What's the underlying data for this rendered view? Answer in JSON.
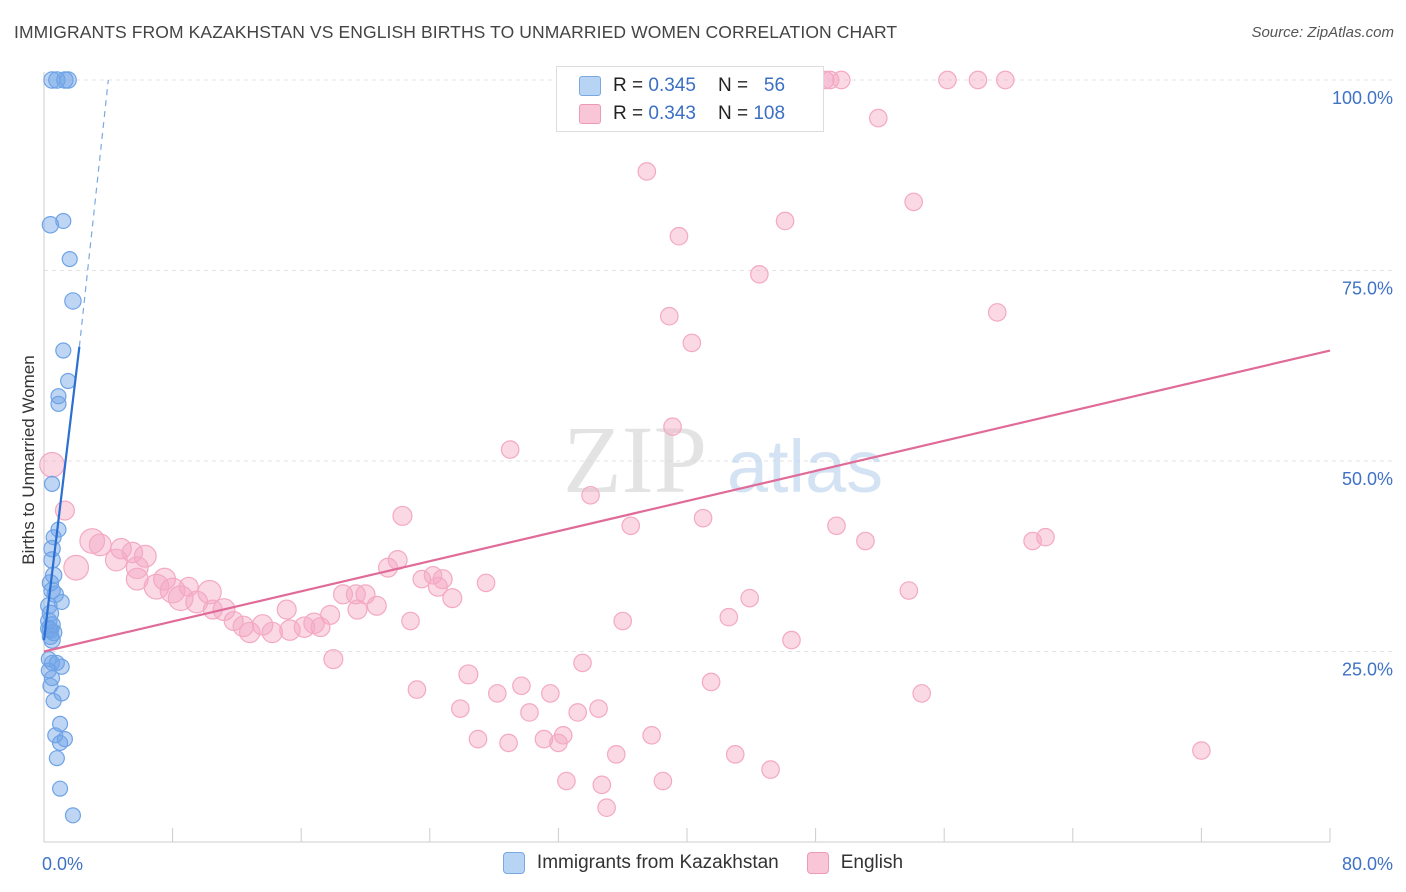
{
  "title": "IMMIGRANTS FROM KAZAKHSTAN VS ENGLISH BIRTHS TO UNMARRIED WOMEN CORRELATION CHART",
  "source": "Source: ZipAtlas.com",
  "watermark": {
    "zip": "ZIP",
    "atlas": "atlas"
  },
  "legend": {
    "r_label": "R =",
    "n_label": "N =",
    "rows": [
      {
        "r": "0.345",
        "n": "56",
        "fill": "#b8d4f5",
        "stroke": "#7aa8e0"
      },
      {
        "r": "0.343",
        "n": "108",
        "fill": "#f8c6d6",
        "stroke": "#ec9ab5"
      }
    ]
  },
  "bottom_legend": [
    {
      "label": "Immigrants from Kazakhstan",
      "fill": "#b8d4f5",
      "stroke": "#7aa8e0"
    },
    {
      "label": "English",
      "fill": "#f8c6d6",
      "stroke": "#ec9ab5"
    }
  ],
  "chart_data": {
    "type": "scatter",
    "xlabel": "",
    "ylabel": "Births to Unmarried Women",
    "xlim": [
      0,
      80
    ],
    "ylim": [
      0,
      100
    ],
    "x_tick_labels": [
      {
        "value": 0,
        "label": "0.0%"
      },
      {
        "value": 80,
        "label": "80.0%"
      }
    ],
    "y_tick_labels": [
      {
        "value": 25,
        "label": "25.0%"
      },
      {
        "value": 50,
        "label": "50.0%"
      },
      {
        "value": 75,
        "label": "75.0%"
      },
      {
        "value": 100,
        "label": "100.0%"
      }
    ],
    "grid": true,
    "series": [
      {
        "name": "Immigrants from Kazakhstan",
        "color": "#6fa3e6",
        "line_color": "#2a6fd1",
        "trend": {
          "x0": 0.0,
          "y0": 26.5,
          "x1": 2.2,
          "y1": 65.0,
          "dash_to": {
            "x": 4.0,
            "y": 100.0
          }
        },
        "points": [
          [
            0.5,
            100,
            12
          ],
          [
            0.8,
            100,
            12
          ],
          [
            1.3,
            100,
            12
          ],
          [
            1.5,
            100,
            12
          ],
          [
            0.4,
            81,
            12
          ],
          [
            1.2,
            81.5,
            11
          ],
          [
            1.6,
            76.5,
            11
          ],
          [
            1.8,
            71,
            12
          ],
          [
            1.2,
            64.5,
            11
          ],
          [
            1.5,
            60.5,
            11
          ],
          [
            0.9,
            58.5,
            11
          ],
          [
            0.9,
            57.5,
            11
          ],
          [
            0.5,
            47,
            11
          ],
          [
            0.9,
            41,
            11
          ],
          [
            0.6,
            40,
            11
          ],
          [
            0.5,
            38.5,
            12
          ],
          [
            0.5,
            37,
            12
          ],
          [
            0.6,
            35,
            12
          ],
          [
            0.4,
            34,
            12
          ],
          [
            0.5,
            33,
            12
          ],
          [
            0.7,
            32.5,
            12
          ],
          [
            1.1,
            31.5,
            11
          ],
          [
            0.3,
            31,
            12
          ],
          [
            0.4,
            30,
            12
          ],
          [
            0.3,
            29,
            12
          ],
          [
            0.5,
            28.5,
            12
          ],
          [
            0.3,
            28,
            12
          ],
          [
            0.4,
            27.8,
            12
          ],
          [
            0.6,
            27.5,
            12
          ],
          [
            0.4,
            27,
            12
          ],
          [
            0.5,
            26.5,
            12
          ],
          [
            0.3,
            24,
            11
          ],
          [
            0.5,
            23.5,
            11
          ],
          [
            0.8,
            23.5,
            11
          ],
          [
            1.1,
            23,
            11
          ],
          [
            0.3,
            22.5,
            11
          ],
          [
            0.5,
            21.5,
            11
          ],
          [
            0.4,
            20.5,
            11
          ],
          [
            1.1,
            19.5,
            11
          ],
          [
            0.6,
            18.5,
            11
          ],
          [
            1.0,
            15.5,
            11
          ],
          [
            0.7,
            14,
            11
          ],
          [
            1.3,
            13.5,
            11
          ],
          [
            1.0,
            13,
            11
          ],
          [
            0.8,
            11,
            11
          ],
          [
            1.0,
            7,
            11
          ],
          [
            1.8,
            3.5,
            11
          ]
        ]
      },
      {
        "name": "English",
        "color": "#f4a9c3",
        "line_color": "#e06b98",
        "trend": {
          "x0": 0.0,
          "y0": 25.0,
          "x1": 80.0,
          "y1": 64.5
        },
        "points": [
          [
            0.5,
            49.5,
            16
          ],
          [
            1.3,
            43.5,
            12
          ],
          [
            2.0,
            36,
            16
          ],
          [
            3.0,
            39.5,
            16
          ],
          [
            3.5,
            39,
            14
          ],
          [
            4.8,
            38.5,
            13
          ],
          [
            5.5,
            38,
            13
          ],
          [
            4.5,
            37,
            14
          ],
          [
            6.3,
            37.5,
            14
          ],
          [
            5.8,
            36,
            14
          ],
          [
            5.8,
            34.5,
            14
          ],
          [
            7.5,
            34.5,
            14
          ],
          [
            7.0,
            33.5,
            16
          ],
          [
            8.0,
            33,
            16
          ],
          [
            9.0,
            33.5,
            12
          ],
          [
            10.3,
            32.8,
            15
          ],
          [
            9.5,
            31.5,
            14
          ],
          [
            8.5,
            32,
            16
          ],
          [
            10.5,
            30.5,
            12
          ],
          [
            11.2,
            30.5,
            14
          ],
          [
            11.8,
            29,
            12
          ],
          [
            12.4,
            28.3,
            13
          ],
          [
            12.8,
            27.5,
            13
          ],
          [
            13.6,
            28.5,
            13
          ],
          [
            14.2,
            27.5,
            13
          ],
          [
            15.1,
            30.5,
            12
          ],
          [
            15.3,
            27.8,
            13
          ],
          [
            16.2,
            28.2,
            13
          ],
          [
            16.8,
            28.7,
            13
          ],
          [
            17.2,
            28.2,
            12
          ],
          [
            17.8,
            29.8,
            12
          ],
          [
            18.0,
            24,
            12
          ],
          [
            18.6,
            32.5,
            12
          ],
          [
            19.4,
            32.5,
            12
          ],
          [
            19.5,
            30.5,
            12
          ],
          [
            20.0,
            32.5,
            12
          ],
          [
            20.7,
            31,
            12
          ],
          [
            21.4,
            36,
            12
          ],
          [
            22.0,
            37,
            12
          ],
          [
            22.3,
            42.8,
            12
          ],
          [
            22.8,
            29,
            11
          ],
          [
            23.2,
            20,
            11
          ],
          [
            23.5,
            34.5,
            11
          ],
          [
            24.2,
            35,
            11
          ],
          [
            24.5,
            33.5,
            12
          ],
          [
            24.8,
            34.5,
            12
          ],
          [
            25.4,
            32,
            12
          ],
          [
            25.9,
            17.5,
            11
          ],
          [
            26.4,
            22,
            12
          ],
          [
            27.0,
            13.5,
            11
          ],
          [
            27.5,
            34,
            11
          ],
          [
            28.2,
            19.5,
            11
          ],
          [
            28.9,
            13,
            11
          ],
          [
            29.0,
            51.5,
            11
          ],
          [
            29.7,
            20.5,
            11
          ],
          [
            30.2,
            17,
            11
          ],
          [
            31.1,
            13.5,
            11
          ],
          [
            31.5,
            19.5,
            11
          ],
          [
            32.0,
            13,
            11
          ],
          [
            32.3,
            14,
            11
          ],
          [
            32.5,
            8,
            11
          ],
          [
            33.2,
            17,
            11
          ],
          [
            33.5,
            23.5,
            11
          ],
          [
            34.0,
            45.5,
            11
          ],
          [
            34.5,
            17.5,
            11
          ],
          [
            34.7,
            7.5,
            11
          ],
          [
            35.0,
            4.5,
            11
          ],
          [
            35.6,
            11.5,
            11
          ],
          [
            36.0,
            29,
            11
          ],
          [
            36.5,
            41.5,
            11
          ],
          [
            37.5,
            88,
            11
          ],
          [
            37.8,
            14,
            11
          ],
          [
            38.5,
            8,
            11
          ],
          [
            38.9,
            69,
            11
          ],
          [
            39.1,
            54.5,
            11
          ],
          [
            39.5,
            79.5,
            11
          ],
          [
            40.3,
            65.5,
            11
          ],
          [
            41.0,
            42.5,
            11
          ],
          [
            41.5,
            21,
            11
          ],
          [
            42.6,
            29.5,
            11
          ],
          [
            43.0,
            11.5,
            11
          ],
          [
            43.9,
            32,
            11
          ],
          [
            44.5,
            74.5,
            11
          ],
          [
            45.2,
            9.5,
            11
          ],
          [
            46.1,
            81.5,
            11
          ],
          [
            46.5,
            26.5,
            11
          ],
          [
            48.6,
            100,
            11
          ],
          [
            48.9,
            100,
            11
          ],
          [
            49.6,
            100,
            11
          ],
          [
            49.3,
            41.5,
            11
          ],
          [
            51.1,
            39.5,
            11
          ],
          [
            51.9,
            95,
            11
          ],
          [
            53.8,
            33,
            11
          ],
          [
            54.1,
            84,
            11
          ],
          [
            54.6,
            19.5,
            11
          ],
          [
            56.2,
            100,
            11
          ],
          [
            58.1,
            100,
            11
          ],
          [
            59.3,
            69.5,
            11
          ],
          [
            59.8,
            100,
            11
          ],
          [
            61.5,
            39.5,
            11
          ],
          [
            62.3,
            40,
            11
          ],
          [
            72.0,
            12,
            11
          ]
        ]
      }
    ]
  }
}
